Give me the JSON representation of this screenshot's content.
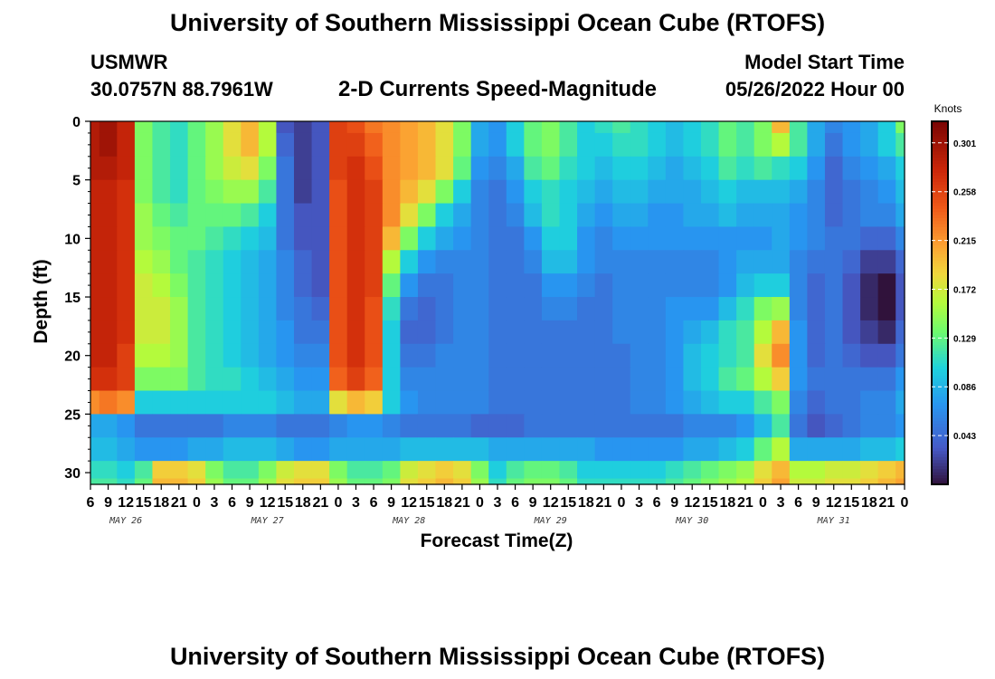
{
  "header": {
    "title": "University of Southern Mississippi Ocean Cube (RTOFS)",
    "station": "USMWR",
    "coords": "30.0757N  88.7961W",
    "subtitle": "2-D Currents Speed-Magnitude",
    "model_label": "Model Start Time",
    "model_time": "05/26/2022 Hour 00"
  },
  "footer": {
    "title": "University of Southern Mississippi Ocean Cube (RTOFS)"
  },
  "chart_data": {
    "type": "heatmap",
    "xlabel": "Forecast Time(Z)",
    "ylabel": "Depth (ft)",
    "colorbar_label": "Knots",
    "colorbar_ticks": [
      0.301,
      0.258,
      0.215,
      0.172,
      0.129,
      0.086,
      0.043
    ],
    "colorbar_range": [
      0.0,
      0.32
    ],
    "x_tick_labels": [
      "6",
      "9",
      "12",
      "15",
      "18",
      "21",
      "0",
      "3",
      "6",
      "9",
      "12",
      "15",
      "18",
      "21",
      "0",
      "3",
      "6",
      "9",
      "12",
      "15",
      "18",
      "21",
      "0",
      "3",
      "6",
      "9",
      "12",
      "15",
      "18",
      "21",
      "0",
      "3",
      "6",
      "9",
      "12",
      "15",
      "18",
      "21",
      "0",
      "3",
      "6",
      "9",
      "12",
      "15",
      "18",
      "21",
      "0"
    ],
    "day_labels": [
      "MAY 26",
      "MAY 27",
      "MAY 28",
      "MAY 29",
      "MAY 30",
      "MAY 31"
    ],
    "y_ticks": [
      0,
      5,
      10,
      15,
      20,
      25,
      30
    ],
    "ylim": [
      0,
      31
    ],
    "depths_ft": [
      0,
      2,
      4,
      6,
      8,
      10,
      12,
      14,
      16,
      18,
      20,
      22,
      24,
      26,
      28,
      30,
      31
    ],
    "forecast_hours": [
      6,
      9,
      12,
      15,
      18,
      21,
      24,
      27,
      30,
      33,
      36,
      39,
      42,
      45,
      48,
      51,
      54,
      57,
      60,
      63,
      66,
      69,
      72,
      75,
      78,
      81,
      84,
      87,
      90,
      93,
      96,
      99,
      102,
      105,
      108,
      111,
      114,
      117,
      120,
      123,
      126,
      129,
      132,
      135,
      138,
      141,
      144
    ],
    "values": [
      [
        0.29,
        0.3,
        0.28,
        0.14,
        0.12,
        0.11,
        0.13,
        0.15,
        0.18,
        0.2,
        0.16,
        0.03,
        0.02,
        0.03,
        0.26,
        0.25,
        0.23,
        0.22,
        0.21,
        0.2,
        0.18,
        0.14,
        0.08,
        0.07,
        0.1,
        0.13,
        0.14,
        0.12,
        0.1,
        0.11,
        0.12,
        0.11,
        0.1,
        0.09,
        0.1,
        0.11,
        0.13,
        0.12,
        0.14,
        0.2,
        0.12,
        0.08,
        0.06,
        0.07,
        0.08,
        0.1,
        0.14
      ],
      [
        0.29,
        0.3,
        0.28,
        0.14,
        0.12,
        0.11,
        0.13,
        0.15,
        0.18,
        0.2,
        0.16,
        0.04,
        0.02,
        0.03,
        0.26,
        0.26,
        0.24,
        0.22,
        0.21,
        0.2,
        0.18,
        0.14,
        0.08,
        0.07,
        0.1,
        0.13,
        0.14,
        0.12,
        0.1,
        0.1,
        0.11,
        0.11,
        0.1,
        0.09,
        0.1,
        0.11,
        0.13,
        0.12,
        0.14,
        0.16,
        0.12,
        0.08,
        0.05,
        0.07,
        0.08,
        0.1,
        0.12
      ],
      [
        0.29,
        0.29,
        0.28,
        0.14,
        0.12,
        0.11,
        0.13,
        0.15,
        0.17,
        0.18,
        0.14,
        0.05,
        0.02,
        0.03,
        0.26,
        0.27,
        0.25,
        0.22,
        0.21,
        0.2,
        0.18,
        0.13,
        0.07,
        0.06,
        0.08,
        0.12,
        0.13,
        0.11,
        0.1,
        0.09,
        0.1,
        0.1,
        0.09,
        0.08,
        0.09,
        0.1,
        0.12,
        0.11,
        0.12,
        0.11,
        0.1,
        0.07,
        0.04,
        0.06,
        0.07,
        0.08,
        0.1
      ],
      [
        0.28,
        0.28,
        0.27,
        0.14,
        0.12,
        0.11,
        0.13,
        0.14,
        0.15,
        0.15,
        0.12,
        0.05,
        0.02,
        0.03,
        0.25,
        0.27,
        0.26,
        0.22,
        0.2,
        0.18,
        0.14,
        0.1,
        0.06,
        0.05,
        0.07,
        0.1,
        0.11,
        0.1,
        0.09,
        0.08,
        0.09,
        0.09,
        0.08,
        0.08,
        0.08,
        0.09,
        0.1,
        0.09,
        0.09,
        0.09,
        0.08,
        0.06,
        0.04,
        0.05,
        0.06,
        0.07,
        0.09
      ],
      [
        0.28,
        0.28,
        0.27,
        0.15,
        0.13,
        0.12,
        0.13,
        0.13,
        0.13,
        0.12,
        0.1,
        0.05,
        0.03,
        0.03,
        0.25,
        0.27,
        0.26,
        0.22,
        0.18,
        0.14,
        0.1,
        0.08,
        0.06,
        0.05,
        0.06,
        0.09,
        0.11,
        0.1,
        0.08,
        0.07,
        0.08,
        0.08,
        0.07,
        0.07,
        0.08,
        0.08,
        0.09,
        0.08,
        0.08,
        0.08,
        0.07,
        0.06,
        0.04,
        0.05,
        0.06,
        0.06,
        0.08
      ],
      [
        0.28,
        0.28,
        0.27,
        0.15,
        0.14,
        0.13,
        0.13,
        0.12,
        0.11,
        0.1,
        0.09,
        0.05,
        0.03,
        0.03,
        0.25,
        0.27,
        0.26,
        0.2,
        0.14,
        0.1,
        0.08,
        0.07,
        0.06,
        0.05,
        0.05,
        0.07,
        0.1,
        0.1,
        0.07,
        0.06,
        0.07,
        0.07,
        0.07,
        0.07,
        0.07,
        0.07,
        0.07,
        0.07,
        0.07,
        0.08,
        0.07,
        0.06,
        0.05,
        0.05,
        0.04,
        0.04,
        0.06
      ],
      [
        0.28,
        0.28,
        0.27,
        0.16,
        0.15,
        0.13,
        0.12,
        0.11,
        0.1,
        0.09,
        0.08,
        0.06,
        0.04,
        0.03,
        0.25,
        0.27,
        0.26,
        0.16,
        0.1,
        0.07,
        0.06,
        0.06,
        0.06,
        0.05,
        0.05,
        0.06,
        0.09,
        0.09,
        0.07,
        0.06,
        0.06,
        0.06,
        0.06,
        0.06,
        0.06,
        0.06,
        0.07,
        0.08,
        0.08,
        0.08,
        0.06,
        0.05,
        0.05,
        0.04,
        0.02,
        0.02,
        0.04
      ],
      [
        0.28,
        0.28,
        0.27,
        0.17,
        0.16,
        0.14,
        0.12,
        0.11,
        0.1,
        0.09,
        0.08,
        0.06,
        0.04,
        0.03,
        0.25,
        0.27,
        0.26,
        0.13,
        0.07,
        0.05,
        0.05,
        0.06,
        0.06,
        0.05,
        0.05,
        0.05,
        0.07,
        0.07,
        0.06,
        0.05,
        0.06,
        0.06,
        0.06,
        0.06,
        0.06,
        0.06,
        0.07,
        0.09,
        0.1,
        0.1,
        0.06,
        0.04,
        0.05,
        0.03,
        0.01,
        0.0,
        0.03
      ],
      [
        0.28,
        0.28,
        0.27,
        0.17,
        0.17,
        0.15,
        0.12,
        0.11,
        0.1,
        0.09,
        0.08,
        0.06,
        0.05,
        0.04,
        0.25,
        0.27,
        0.25,
        0.11,
        0.05,
        0.04,
        0.05,
        0.06,
        0.06,
        0.05,
        0.05,
        0.05,
        0.06,
        0.06,
        0.05,
        0.05,
        0.06,
        0.06,
        0.06,
        0.07,
        0.07,
        0.07,
        0.09,
        0.11,
        0.14,
        0.15,
        0.06,
        0.04,
        0.05,
        0.03,
        0.01,
        0.0,
        0.03
      ],
      [
        0.28,
        0.28,
        0.27,
        0.17,
        0.17,
        0.15,
        0.12,
        0.11,
        0.1,
        0.09,
        0.08,
        0.07,
        0.05,
        0.05,
        0.25,
        0.27,
        0.25,
        0.1,
        0.04,
        0.04,
        0.05,
        0.06,
        0.06,
        0.05,
        0.05,
        0.05,
        0.05,
        0.05,
        0.05,
        0.05,
        0.06,
        0.06,
        0.06,
        0.07,
        0.08,
        0.09,
        0.11,
        0.12,
        0.16,
        0.2,
        0.07,
        0.04,
        0.05,
        0.03,
        0.02,
        0.01,
        0.04
      ],
      [
        0.28,
        0.28,
        0.26,
        0.16,
        0.16,
        0.15,
        0.12,
        0.11,
        0.1,
        0.09,
        0.08,
        0.07,
        0.06,
        0.06,
        0.25,
        0.27,
        0.25,
        0.1,
        0.05,
        0.05,
        0.06,
        0.06,
        0.06,
        0.05,
        0.05,
        0.05,
        0.05,
        0.05,
        0.05,
        0.05,
        0.05,
        0.06,
        0.06,
        0.07,
        0.09,
        0.1,
        0.11,
        0.12,
        0.18,
        0.22,
        0.07,
        0.04,
        0.05,
        0.04,
        0.03,
        0.03,
        0.05
      ],
      [
        0.27,
        0.27,
        0.26,
        0.14,
        0.14,
        0.14,
        0.12,
        0.11,
        0.11,
        0.1,
        0.09,
        0.08,
        0.07,
        0.07,
        0.24,
        0.26,
        0.24,
        0.1,
        0.06,
        0.06,
        0.06,
        0.06,
        0.06,
        0.05,
        0.05,
        0.05,
        0.05,
        0.05,
        0.05,
        0.05,
        0.05,
        0.06,
        0.06,
        0.07,
        0.09,
        0.1,
        0.12,
        0.13,
        0.16,
        0.19,
        0.07,
        0.05,
        0.05,
        0.05,
        0.05,
        0.05,
        0.07
      ],
      [
        0.22,
        0.23,
        0.22,
        0.1,
        0.1,
        0.1,
        0.1,
        0.1,
        0.1,
        0.1,
        0.1,
        0.09,
        0.08,
        0.08,
        0.18,
        0.2,
        0.19,
        0.1,
        0.07,
        0.06,
        0.06,
        0.06,
        0.06,
        0.05,
        0.05,
        0.05,
        0.05,
        0.05,
        0.05,
        0.05,
        0.05,
        0.06,
        0.06,
        0.07,
        0.08,
        0.09,
        0.1,
        0.1,
        0.12,
        0.14,
        0.06,
        0.04,
        0.05,
        0.05,
        0.06,
        0.06,
        0.08
      ],
      [
        0.08,
        0.08,
        0.07,
        0.05,
        0.05,
        0.05,
        0.05,
        0.05,
        0.06,
        0.06,
        0.06,
        0.05,
        0.05,
        0.05,
        0.06,
        0.07,
        0.07,
        0.06,
        0.05,
        0.05,
        0.05,
        0.05,
        0.04,
        0.04,
        0.04,
        0.05,
        0.05,
        0.05,
        0.05,
        0.05,
        0.05,
        0.05,
        0.05,
        0.05,
        0.06,
        0.06,
        0.06,
        0.07,
        0.09,
        0.12,
        0.05,
        0.03,
        0.04,
        0.05,
        0.06,
        0.06,
        0.07
      ],
      [
        0.09,
        0.09,
        0.08,
        0.07,
        0.07,
        0.07,
        0.08,
        0.08,
        0.09,
        0.09,
        0.09,
        0.08,
        0.07,
        0.07,
        0.08,
        0.08,
        0.08,
        0.08,
        0.09,
        0.09,
        0.09,
        0.09,
        0.09,
        0.08,
        0.08,
        0.08,
        0.08,
        0.08,
        0.08,
        0.07,
        0.07,
        0.07,
        0.07,
        0.07,
        0.08,
        0.08,
        0.09,
        0.1,
        0.13,
        0.16,
        0.08,
        0.08,
        0.08,
        0.08,
        0.09,
        0.09,
        0.1
      ],
      [
        0.11,
        0.11,
        0.1,
        0.12,
        0.19,
        0.19,
        0.18,
        0.14,
        0.12,
        0.12,
        0.14,
        0.17,
        0.18,
        0.18,
        0.14,
        0.12,
        0.12,
        0.13,
        0.17,
        0.18,
        0.19,
        0.18,
        0.14,
        0.1,
        0.12,
        0.13,
        0.13,
        0.12,
        0.1,
        0.1,
        0.1,
        0.1,
        0.1,
        0.11,
        0.12,
        0.13,
        0.14,
        0.15,
        0.18,
        0.2,
        0.16,
        0.16,
        0.17,
        0.17,
        0.18,
        0.19,
        0.2
      ],
      [
        0.12,
        0.12,
        0.11,
        0.13,
        0.2,
        0.2,
        0.19,
        0.15,
        0.13,
        0.13,
        0.15,
        0.18,
        0.19,
        0.19,
        0.15,
        0.13,
        0.13,
        0.14,
        0.18,
        0.19,
        0.2,
        0.19,
        0.15,
        0.11,
        0.13,
        0.14,
        0.14,
        0.13,
        0.11,
        0.11,
        0.11,
        0.11,
        0.11,
        0.12,
        0.13,
        0.14,
        0.15,
        0.16,
        0.19,
        0.21,
        0.17,
        0.17,
        0.18,
        0.18,
        0.19,
        0.2,
        0.21
      ]
    ]
  }
}
